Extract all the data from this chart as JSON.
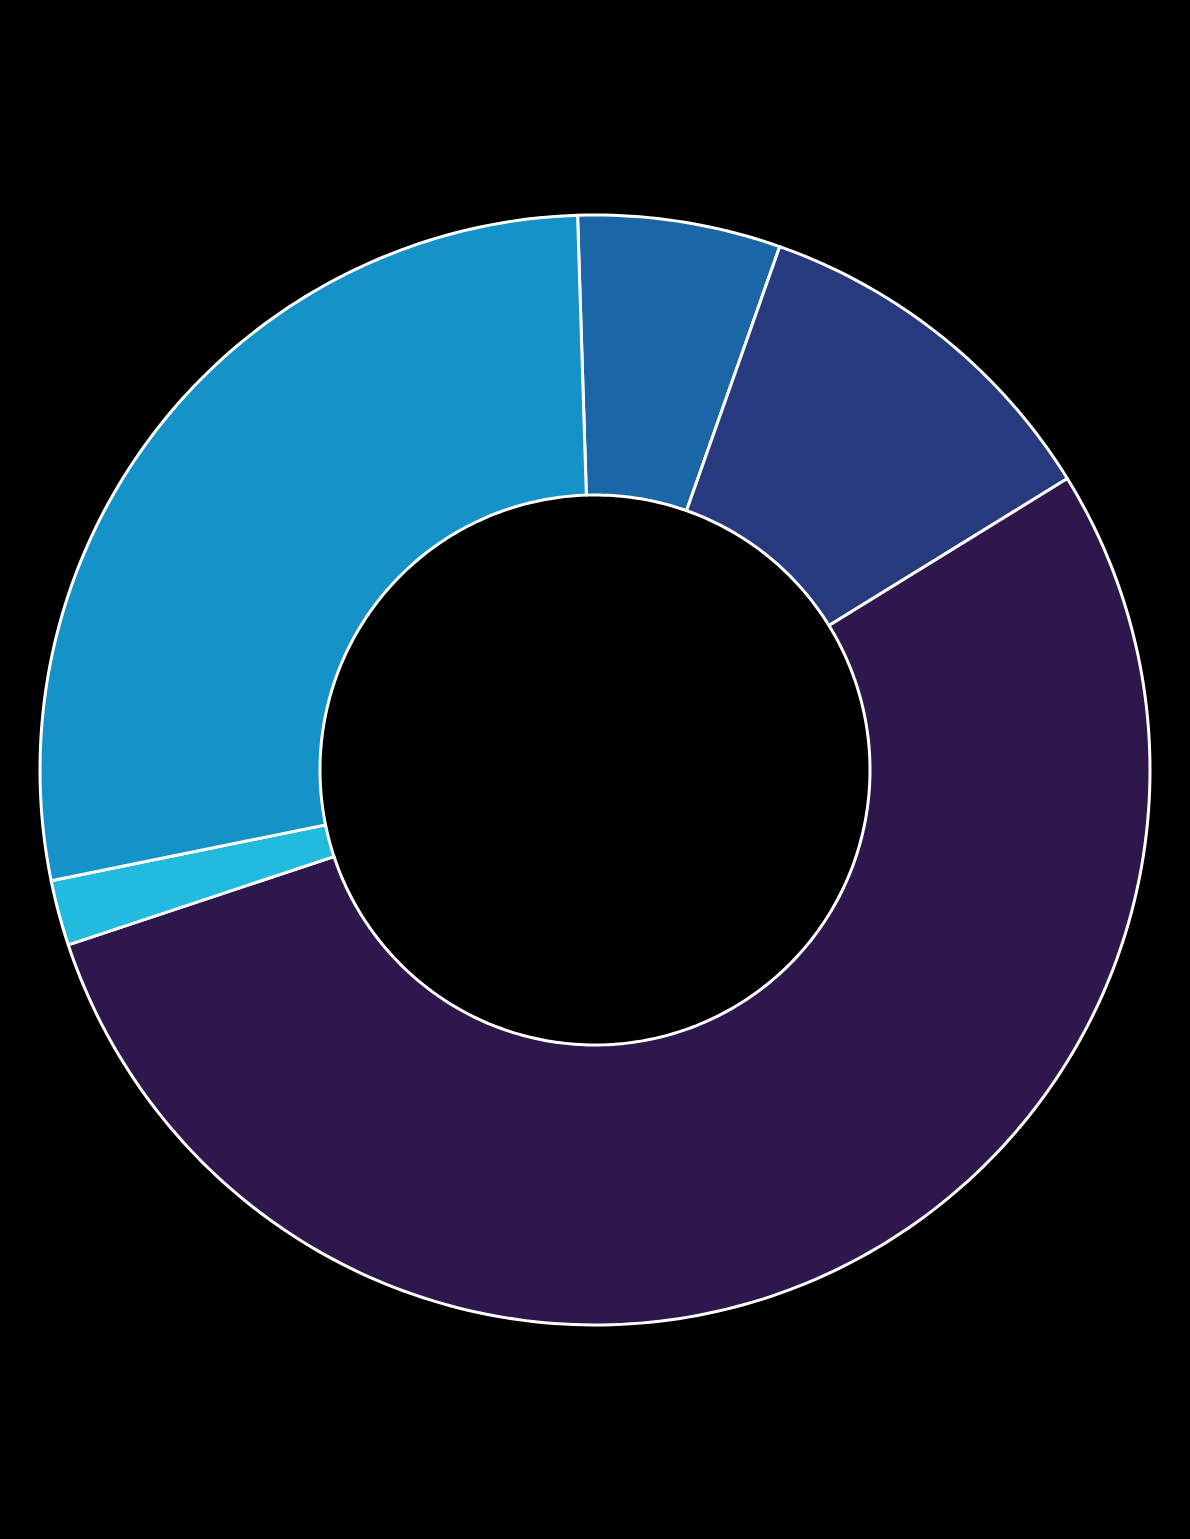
{
  "chart_data": {
    "type": "donut",
    "categories": [
      null,
      null,
      null,
      null,
      null
    ],
    "values": [
      5.9,
      10.8,
      53.7,
      1.9,
      27.7
    ],
    "colors": [
      "#1a66a6",
      "#283a7e",
      "#2d174c",
      "#22bbdd",
      "#1592c8"
    ]
  }
}
